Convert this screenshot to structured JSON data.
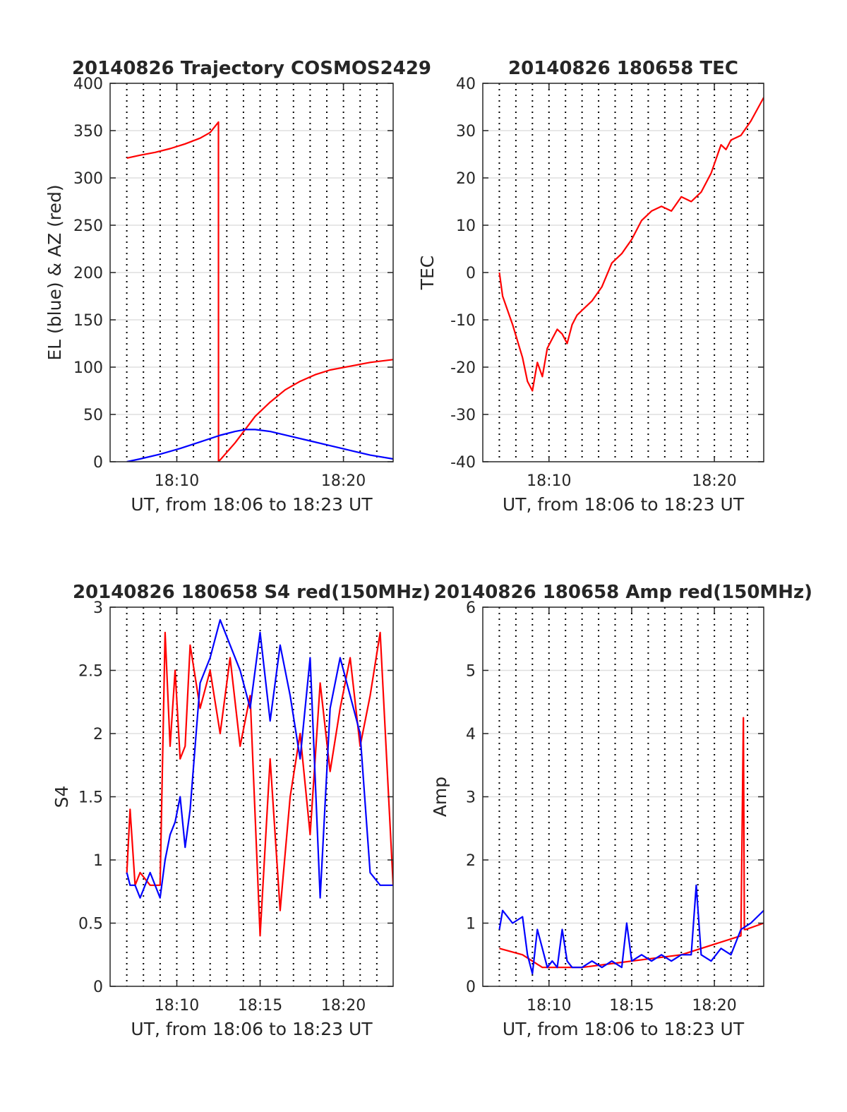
{
  "chart_data": [
    {
      "id": "trajectory",
      "type": "line",
      "title": "20140826 Trajectory COSMOS2429",
      "xlabel": "UT, from 18:06 to 18:23 UT",
      "ylabel": "EL (blue) & AZ (red)",
      "xlim": [
        18.1,
        18.383
      ],
      "ylim": [
        0,
        400
      ],
      "x_ticks": [
        {
          "value": 18.1667,
          "label": "18:10"
        },
        {
          "value": 18.3333,
          "label": "18:20"
        }
      ],
      "y_ticks": [
        {
          "value": 0,
          "label": "0"
        },
        {
          "value": 50,
          "label": "50"
        },
        {
          "value": 100,
          "label": "100"
        },
        {
          "value": 150,
          "label": "150"
        },
        {
          "value": 200,
          "label": "200"
        },
        {
          "value": 250,
          "label": "250"
        },
        {
          "value": 300,
          "label": "300"
        },
        {
          "value": 350,
          "label": "350"
        },
        {
          "value": 400,
          "label": "400"
        }
      ],
      "grid": true,
      "series": [
        {
          "color": "#ff0000",
          "x": [
            18.1167,
            18.13,
            18.145,
            18.16,
            18.175,
            18.19,
            18.2,
            18.2083,
            18.2084,
            18.215,
            18.225,
            18.235,
            18.245,
            18.26,
            18.275,
            18.29,
            18.305,
            18.32,
            18.34,
            18.36,
            18.383
          ],
          "y": [
            321,
            324,
            327,
            331,
            336,
            342,
            348,
            359,
            0,
            8,
            20,
            34,
            48,
            63,
            76,
            85,
            92,
            97,
            101,
            105,
            108
          ]
        },
        {
          "color": "#0000ff",
          "x": [
            18.1167,
            18.13,
            18.15,
            18.17,
            18.19,
            18.21,
            18.225,
            18.235,
            18.245,
            18.26,
            18.28,
            18.3,
            18.32,
            18.34,
            18.36,
            18.383
          ],
          "y": [
            0,
            3,
            8,
            14,
            21,
            28,
            32,
            34,
            34,
            32,
            27,
            22,
            17,
            12,
            7,
            3
          ]
        }
      ]
    },
    {
      "id": "tec",
      "type": "line",
      "title": "20140826 180658 TEC",
      "xlabel": "UT, from 18:06 to 18:23 UT",
      "ylabel": "TEC",
      "xlim": [
        18.1,
        18.383
      ],
      "ylim": [
        -40,
        40
      ],
      "x_ticks": [
        {
          "value": 18.1667,
          "label": "18:10"
        },
        {
          "value": 18.3333,
          "label": "18:20"
        }
      ],
      "y_ticks": [
        {
          "value": -40,
          "label": "-40"
        },
        {
          "value": -30,
          "label": "-30"
        },
        {
          "value": -20,
          "label": "-20"
        },
        {
          "value": -10,
          "label": "-10"
        },
        {
          "value": 0,
          "label": "0"
        },
        {
          "value": 10,
          "label": "10"
        },
        {
          "value": 20,
          "label": "20"
        },
        {
          "value": 30,
          "label": "30"
        },
        {
          "value": 40,
          "label": "40"
        }
      ],
      "grid": true,
      "series": [
        {
          "color": "#ff0000",
          "x": [
            18.1167,
            18.12,
            18.13,
            18.14,
            18.145,
            18.15,
            18.155,
            18.16,
            18.165,
            18.17,
            18.175,
            18.18,
            18.185,
            18.19,
            18.195,
            18.2,
            18.21,
            18.22,
            18.23,
            18.24,
            18.25,
            18.26,
            18.27,
            18.28,
            18.29,
            18.3,
            18.31,
            18.32,
            18.33,
            18.335,
            18.34,
            18.345,
            18.35,
            18.36,
            18.37,
            18.383
          ],
          "y": [
            0,
            -5,
            -11,
            -18,
            -23,
            -25,
            -19,
            -22,
            -16,
            -14,
            -12,
            -13,
            -15,
            -11,
            -9,
            -8,
            -6,
            -3,
            2,
            4,
            7,
            11,
            13,
            14,
            13,
            16,
            15,
            17,
            21,
            24,
            27,
            26,
            28,
            29,
            32,
            37
          ]
        }
      ]
    },
    {
      "id": "s4",
      "type": "line",
      "title": "20140826 180658 S4 red(150MHz)",
      "xlabel": "UT, from 18:06 to 18:23 UT",
      "ylabel": "S4",
      "xlim": [
        18.1,
        18.383
      ],
      "ylim": [
        0,
        3
      ],
      "x_ticks": [
        {
          "value": 18.1667,
          "label": "18:10"
        },
        {
          "value": 18.25,
          "label": "18:15"
        },
        {
          "value": 18.3333,
          "label": "18:20"
        }
      ],
      "y_ticks": [
        {
          "value": 0,
          "label": "0"
        },
        {
          "value": 0.5,
          "label": "0.5"
        },
        {
          "value": 1,
          "label": "1"
        },
        {
          "value": 1.5,
          "label": "1.5"
        },
        {
          "value": 2,
          "label": "2"
        },
        {
          "value": 2.5,
          "label": "2.5"
        },
        {
          "value": 3,
          "label": "3"
        }
      ],
      "grid": true,
      "series": [
        {
          "color": "#ff0000",
          "x": [
            18.1167,
            18.12,
            18.125,
            18.13,
            18.14,
            18.15,
            18.155,
            18.16,
            18.165,
            18.17,
            18.175,
            18.18,
            18.19,
            18.2,
            18.21,
            18.22,
            18.23,
            18.24,
            18.25,
            18.26,
            18.27,
            18.28,
            18.29,
            18.3,
            18.31,
            18.32,
            18.33,
            18.34,
            18.35,
            18.36,
            18.37,
            18.383
          ],
          "y": [
            0.9,
            1.4,
            0.8,
            0.9,
            0.8,
            0.8,
            2.8,
            1.9,
            2.5,
            1.8,
            1.9,
            2.7,
            2.2,
            2.5,
            2.0,
            2.6,
            1.9,
            2.3,
            0.4,
            1.8,
            0.6,
            1.5,
            2.0,
            1.2,
            2.4,
            1.7,
            2.2,
            2.6,
            1.9,
            2.3,
            2.8,
            0.8
          ]
        },
        {
          "color": "#0000ff",
          "x": [
            18.1167,
            18.12,
            18.125,
            18.13,
            18.14,
            18.15,
            18.155,
            18.16,
            18.165,
            18.17,
            18.175,
            18.18,
            18.19,
            18.2,
            18.21,
            18.22,
            18.23,
            18.24,
            18.25,
            18.26,
            18.27,
            18.28,
            18.29,
            18.3,
            18.31,
            18.32,
            18.33,
            18.34,
            18.35,
            18.36,
            18.37,
            18.383
          ],
          "y": [
            0.9,
            0.8,
            0.8,
            0.7,
            0.9,
            0.7,
            1.0,
            1.2,
            1.3,
            1.5,
            1.1,
            1.4,
            2.4,
            2.6,
            2.9,
            2.7,
            2.5,
            2.2,
            2.8,
            2.1,
            2.7,
            2.3,
            1.8,
            2.6,
            0.7,
            2.2,
            2.6,
            2.3,
            2.0,
            0.9,
            0.8,
            0.8
          ]
        }
      ]
    },
    {
      "id": "amp",
      "type": "line",
      "title": "20140826 180658 Amp red(150MHz)",
      "xlabel": "UT, from 18:06 to 18:23 UT",
      "ylabel": "Amp",
      "xlim": [
        18.1,
        18.383
      ],
      "ylim": [
        0,
        6
      ],
      "x_ticks": [
        {
          "value": 18.1667,
          "label": "18:10"
        },
        {
          "value": 18.25,
          "label": "18:15"
        },
        {
          "value": 18.3333,
          "label": "18:20"
        }
      ],
      "y_ticks": [
        {
          "value": 0,
          "label": "0"
        },
        {
          "value": 1,
          "label": "1"
        },
        {
          "value": 2,
          "label": "2"
        },
        {
          "value": 3,
          "label": "3"
        },
        {
          "value": 4,
          "label": "4"
        },
        {
          "value": 5,
          "label": "5"
        },
        {
          "value": 6,
          "label": "6"
        }
      ],
      "grid": true,
      "series": [
        {
          "color": "#ff0000",
          "x": [
            18.1167,
            18.14,
            18.16,
            18.2,
            18.25,
            18.3,
            18.36,
            18.3625,
            18.3635,
            18.365,
            18.383
          ],
          "y": [
            0.6,
            0.5,
            0.3,
            0.3,
            0.4,
            0.5,
            0.8,
            4.25,
            0.9,
            0.9,
            1.0
          ]
        },
        {
          "color": "#0000ff",
          "x": [
            18.1167,
            18.12,
            18.13,
            18.14,
            18.145,
            18.15,
            18.155,
            18.16,
            18.165,
            18.17,
            18.175,
            18.18,
            18.185,
            18.19,
            18.2,
            18.21,
            18.22,
            18.23,
            18.24,
            18.245,
            18.25,
            18.26,
            18.27,
            18.28,
            18.29,
            18.3,
            18.31,
            18.315,
            18.32,
            18.33,
            18.34,
            18.35,
            18.36,
            18.37,
            18.383
          ],
          "y": [
            0.9,
            1.2,
            1.0,
            1.1,
            0.5,
            0.2,
            0.9,
            0.6,
            0.3,
            0.4,
            0.3,
            0.9,
            0.4,
            0.3,
            0.3,
            0.4,
            0.3,
            0.4,
            0.3,
            1.0,
            0.4,
            0.5,
            0.4,
            0.5,
            0.4,
            0.5,
            0.5,
            1.6,
            0.5,
            0.4,
            0.6,
            0.5,
            0.9,
            1.0,
            1.2
          ]
        }
      ]
    }
  ]
}
